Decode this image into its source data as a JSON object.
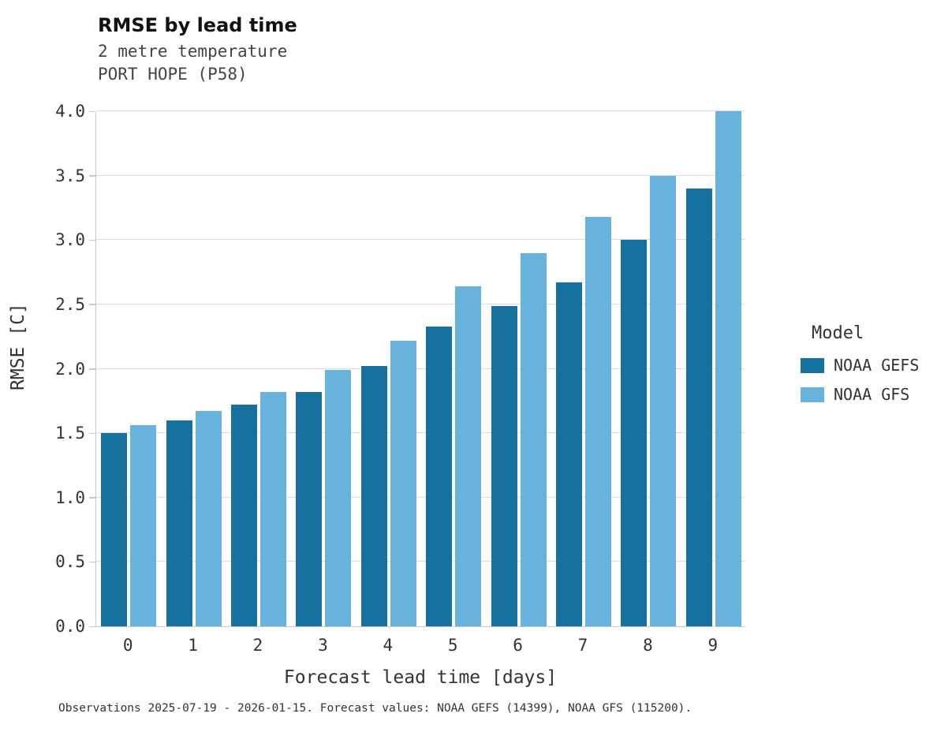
{
  "header": {
    "title": "RMSE by lead time",
    "subtitle1": "2 metre temperature",
    "subtitle2": "PORT HOPE (P58)"
  },
  "chart_data": {
    "type": "bar",
    "title": "RMSE by lead time",
    "subtitle": [
      "2 metre temperature",
      "PORT HOPE (P58)"
    ],
    "categories": [
      "0",
      "1",
      "2",
      "3",
      "4",
      "5",
      "6",
      "7",
      "8",
      "9"
    ],
    "series": [
      {
        "name": "NOAA GEFS",
        "color": "#17719e",
        "values": [
          1.5,
          1.6,
          1.72,
          1.82,
          2.02,
          2.33,
          2.49,
          2.67,
          3.0,
          3.4
        ]
      },
      {
        "name": "NOAA GFS",
        "color": "#67b3de",
        "values": [
          1.56,
          1.67,
          1.82,
          1.99,
          2.22,
          2.64,
          2.9,
          3.18,
          3.5,
          4.0
        ]
      }
    ],
    "xlabel": "Forecast lead time [days]",
    "ylabel": "RMSE [C]",
    "ylim": [
      0.0,
      4.0
    ],
    "yticks": [
      0.0,
      0.5,
      1.0,
      1.5,
      2.0,
      2.5,
      3.0,
      3.5,
      4.0
    ],
    "grid": true,
    "legend_title": "Model",
    "legend_position": "right"
  },
  "footer": {
    "caption": "Observations 2025-07-19 - 2026-01-15. Forecast values: NOAA GEFS (14399), NOAA GFS (115200)."
  }
}
